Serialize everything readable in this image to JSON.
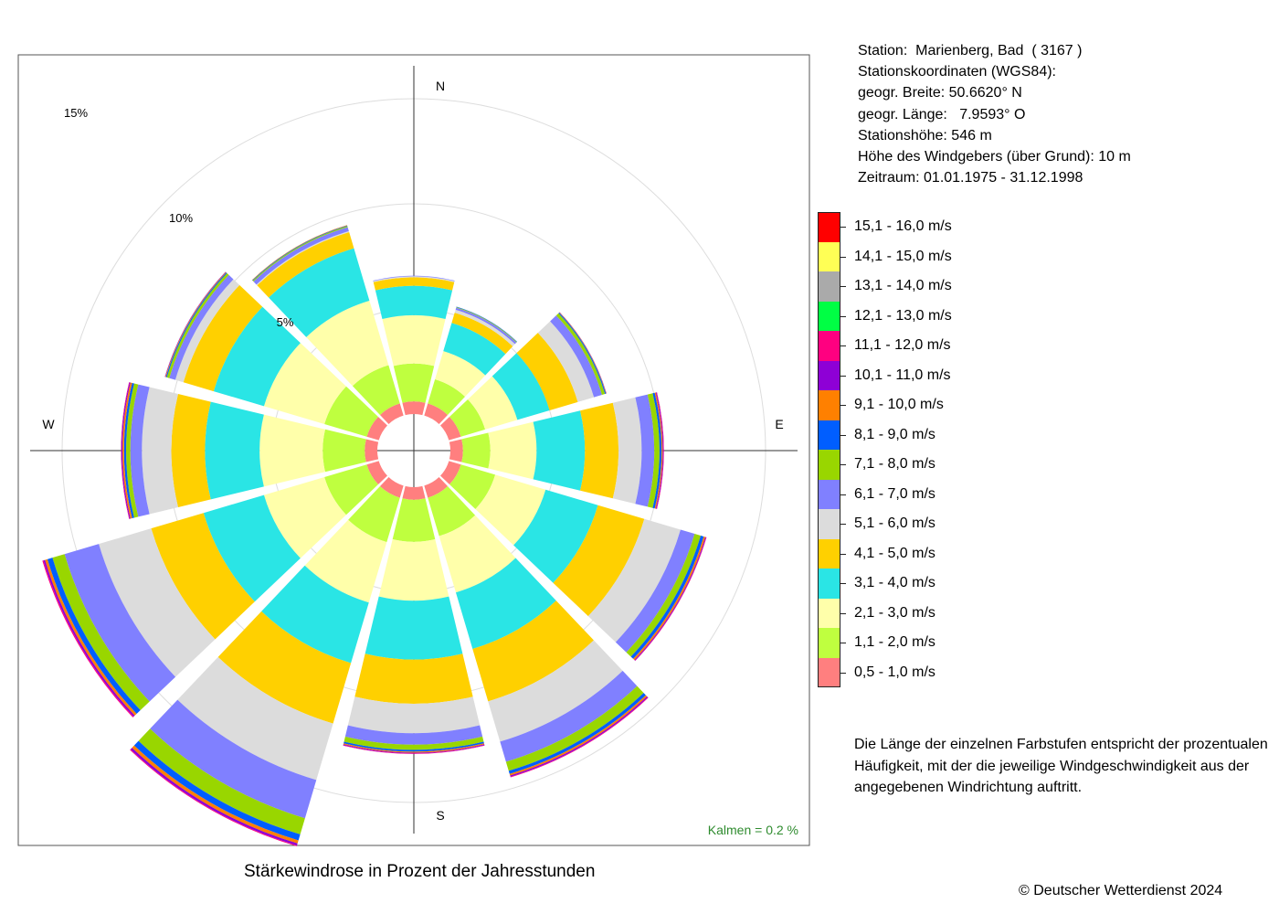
{
  "station": {
    "station_line": "Station:  Marienberg, Bad  ( 3167 )",
    "coords_header": "Stationskoordinaten (WGS84):",
    "lat_line": "geogr. Breite: 50.6620° N",
    "lon_line": "geogr. Länge:   7.9593° O",
    "height_line": "Stationshöhe: 546 m",
    "sensor_line": "Höhe des Windgebers (über Grund): 10 m",
    "period_line": "Zeitraum: 01.01.1975 - 31.12.1998"
  },
  "note": "Die Länge der einzelnen Farbstufen entspricht der prozentualen Häufigkeit, mit der die jeweilige Windgeschwindigkeit aus der angegebenen Windrichtung auftritt.",
  "caption": "Stärkewindrose in Prozent der Jahresstunden",
  "copyright": "© Deutscher Wetterdienst  2024",
  "calm_label": "Kalmen  =  0.2 %",
  "chart_data": {
    "type": "windrose",
    "unit": "%",
    "directions": [
      "N",
      "30°",
      "60°",
      "E",
      "120°",
      "150°",
      "S",
      "210°",
      "240°",
      "W",
      "300°",
      "330°"
    ],
    "compass_labels": [
      "N",
      "E",
      "S",
      "W"
    ],
    "ring_labels": [
      "5%",
      "10%",
      "15%"
    ],
    "rings": [
      5,
      10,
      15
    ],
    "calm_percent": 0.2,
    "classes": [
      {
        "label": "0,5 - 1,0 m/s",
        "color": "#FF7F7F"
      },
      {
        "label": "1,1 - 2,0 m/s",
        "color": "#BFFF3F"
      },
      {
        "label": "2,1 - 3,0 m/s",
        "color": "#FFFFAA"
      },
      {
        "label": "3,1 - 4,0 m/s",
        "color": "#2AE5E5"
      },
      {
        "label": "4,1 - 5,0 m/s",
        "color": "#FFD000"
      },
      {
        "label": "5,1 - 6,0 m/s",
        "color": "#DCDCDC"
      },
      {
        "label": "6,1 - 7,0 m/s",
        "color": "#8080FF"
      },
      {
        "label": "7,1 - 8,0 m/s",
        "color": "#99D600"
      },
      {
        "label": "8,1 - 9,0 m/s",
        "color": "#005EFF"
      },
      {
        "label": "9,1 - 10,0 m/s",
        "color": "#FF8000"
      },
      {
        "label": "10,1 - 11,0 m/s",
        "color": "#8E00D6"
      },
      {
        "label": "11,1 - 12,0 m/s",
        "color": "#FF0080"
      },
      {
        "label": "12,1 - 13,0 m/s",
        "color": "#00FF44"
      },
      {
        "label": "13,1 - 14,0 m/s",
        "color": "#AAAAAA"
      },
      {
        "label": "14,1 - 15,0 m/s",
        "color": "#FFFF55"
      },
      {
        "label": "15,1 - 16,0 m/s",
        "color": "#FF0000"
      }
    ],
    "series": [
      {
        "direction": "N",
        "values": [
          0.6,
          1.8,
          2.3,
          1.4,
          0.4,
          0.05,
          0.03,
          0,
          0,
          0,
          0,
          0,
          0,
          0,
          0,
          0
        ]
      },
      {
        "direction": "30°",
        "values": [
          0.6,
          1.2,
          1.4,
          1.4,
          0.5,
          0.15,
          0.1,
          0.03,
          0.02,
          0,
          0,
          0,
          0,
          0,
          0,
          0
        ]
      },
      {
        "direction": "60°",
        "values": [
          0.6,
          1.2,
          1.6,
          1.6,
          1.4,
          0.8,
          0.4,
          0.15,
          0.05,
          0.02,
          0.01,
          0,
          0,
          0,
          0,
          0
        ]
      },
      {
        "direction": "E",
        "values": [
          0.6,
          1.3,
          2.2,
          2.3,
          1.6,
          1.1,
          0.6,
          0.25,
          0.1,
          0.05,
          0.04,
          0.02,
          0,
          0,
          0,
          0
        ]
      },
      {
        "direction": "120°",
        "values": [
          0.6,
          1.7,
          2.5,
          2.6,
          2.3,
          1.8,
          0.7,
          0.3,
          0.15,
          0.08,
          0.04,
          0.02,
          0,
          0,
          0,
          0
        ]
      },
      {
        "direction": "150°",
        "values": [
          0.6,
          1.9,
          2.8,
          2.8,
          2.6,
          2.0,
          1.0,
          0.45,
          0.15,
          0.08,
          0.06,
          0.03,
          0,
          0,
          0,
          0
        ]
      },
      {
        "direction": "S",
        "values": [
          0.6,
          2.0,
          2.8,
          2.8,
          2.1,
          1.4,
          0.55,
          0.25,
          0.08,
          0.05,
          0.04,
          0.02,
          0,
          0,
          0,
          0
        ]
      },
      {
        "direction": "210°",
        "values": [
          0.6,
          2.2,
          3.0,
          3.0,
          3.0,
          2.8,
          1.9,
          0.8,
          0.3,
          0.15,
          0.1,
          0.04,
          0,
          0,
          0,
          0
        ]
      },
      {
        "direction": "240°",
        "values": [
          0.6,
          2.1,
          3.0,
          3.0,
          2.6,
          2.6,
          1.7,
          0.6,
          0.25,
          0.12,
          0.08,
          0.05,
          0,
          0,
          0,
          0
        ]
      },
      {
        "direction": "W",
        "values": [
          0.6,
          2.0,
          3.0,
          2.6,
          1.6,
          1.4,
          0.55,
          0.2,
          0.1,
          0.08,
          0.05,
          0.02,
          0,
          0,
          0,
          0
        ]
      },
      {
        "direction": "300°",
        "values": [
          0.6,
          2.1,
          3.0,
          2.5,
          1.5,
          0.4,
          0.3,
          0.12,
          0.05,
          0.03,
          0.02,
          0,
          0,
          0,
          0,
          0
        ]
      },
      {
        "direction": "330°",
        "values": [
          0.6,
          1.9,
          3.2,
          2.6,
          0.8,
          0.05,
          0.2,
          0.05,
          0.03,
          0.02,
          0,
          0,
          0,
          0,
          0,
          0
        ]
      }
    ]
  }
}
